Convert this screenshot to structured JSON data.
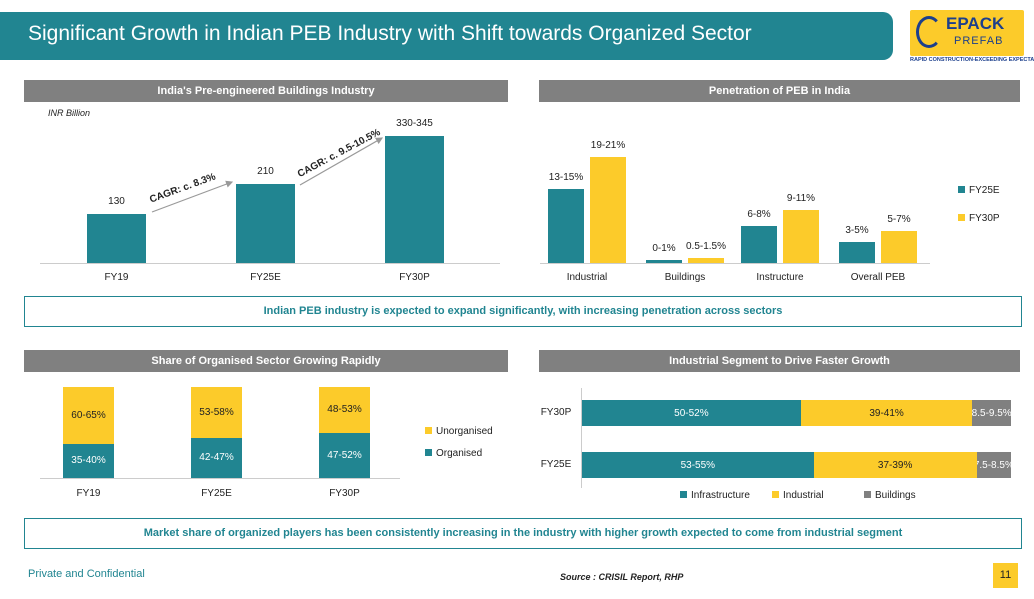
{
  "header": {
    "title": "Significant Growth in Indian PEB Industry with Shift towards Organized Sector",
    "logo_text": "EPACK",
    "logo_sub": "PREFAB",
    "tagline": "RAPID CONSTRUCTION-EXCEEDING EXPECTATIONS"
  },
  "colors": {
    "teal": "#218591",
    "yellow": "#fccb2a",
    "gray": "#808080"
  },
  "chart_data": [
    {
      "type": "bar",
      "title": "India's Pre-engineered Buildings Industry",
      "unit": "INR Billion",
      "categories": [
        "FY19",
        "FY25E",
        "FY30P"
      ],
      "values": [
        130,
        210,
        337.5
      ],
      "value_labels": [
        "130",
        "210",
        "330-345"
      ],
      "annotations": [
        "CAGR: c. 8.3%",
        "CAGR: c. 9.5-10.5%"
      ]
    },
    {
      "type": "bar",
      "title": "Penetration of PEB in India",
      "categories": [
        "Industrial",
        "Buildings",
        "Instructure",
        "Overall PEB"
      ],
      "series": [
        {
          "name": "FY25E",
          "values": [
            14,
            0.5,
            7,
            4
          ],
          "labels": [
            "13-15%",
            "0-1%",
            "6-8%",
            "3-5%"
          ]
        },
        {
          "name": "FY30P",
          "values": [
            20,
            1,
            10,
            6
          ],
          "labels": [
            "19-21%",
            "0.5-1.5%",
            "9-11%",
            "5-7%"
          ]
        }
      ],
      "legend": "right"
    },
    {
      "type": "bar",
      "stacked": true,
      "title": "Share of Organised Sector Growing Rapidly",
      "categories": [
        "FY19",
        "FY25E",
        "FY30P"
      ],
      "series": [
        {
          "name": "Organised",
          "values": [
            37.5,
            44.5,
            49.5
          ],
          "labels": [
            "35-40%",
            "42-47%",
            "47-52%"
          ]
        },
        {
          "name": "Unorganised",
          "values": [
            62.5,
            55.5,
            50.5
          ],
          "labels": [
            "60-65%",
            "53-58%",
            "48-53%"
          ]
        }
      ],
      "legend": "right"
    },
    {
      "type": "bar",
      "orientation": "horizontal",
      "stacked": true,
      "title": "Industrial Segment to Drive Faster Growth",
      "categories": [
        "FY30P",
        "FY25E"
      ],
      "series": [
        {
          "name": "Infrastructure",
          "values": [
            51,
            54
          ],
          "labels": [
            "50-52%",
            "53-55%"
          ]
        },
        {
          "name": "Industrial",
          "values": [
            40,
            38
          ],
          "labels": [
            "39-41%",
            "37-39%"
          ]
        },
        {
          "name": "Buildings",
          "values": [
            9,
            8
          ],
          "labels": [
            "8.5-9.5%",
            "7.5-8.5%"
          ]
        }
      ],
      "legend": "bottom"
    }
  ],
  "callouts": [
    "Indian PEB industry is expected to expand significantly, with increasing penetration across sectors",
    "Market share of organized players has been consistently increasing in the industry with higher growth expected to come from industrial segment"
  ],
  "footer": {
    "confidential": "Private and Confidential",
    "source": "Source : CRISIL Report, RHP",
    "page": "11"
  }
}
